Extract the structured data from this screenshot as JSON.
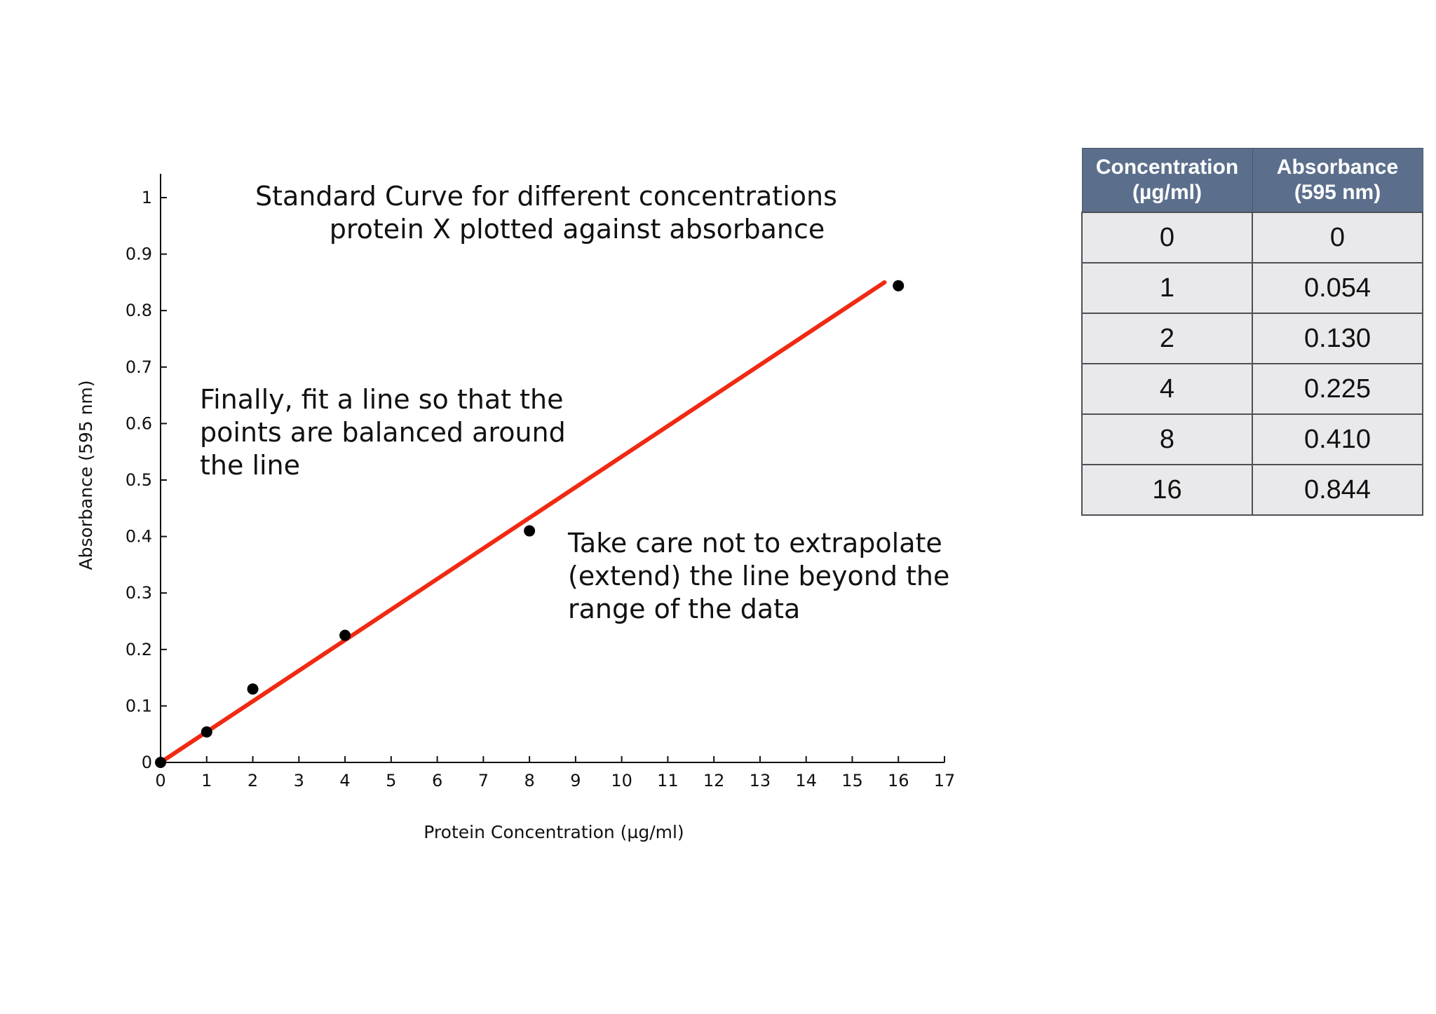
{
  "chart_data": {
    "type": "scatter",
    "title": [
      "Standard Curve for different concentrations",
      "protein X plotted against absorbance"
    ],
    "xlabel": "Protein Concentration (µg/ml)",
    "ylabel": "Absorbance (595 nm)",
    "xlim": [
      0,
      17
    ],
    "ylim": [
      0,
      1
    ],
    "x_ticks": [
      "0",
      "1",
      "2",
      "3",
      "4",
      "5",
      "6",
      "7",
      "8",
      "9",
      "10",
      "11",
      "12",
      "13",
      "14",
      "15",
      "16",
      "17"
    ],
    "y_ticks": [
      "0",
      "0.1",
      "0.2",
      "0.3",
      "0.4",
      "0.5",
      "0.6",
      "0.7",
      "0.8",
      "0.9",
      "1"
    ],
    "grid": false,
    "series": [
      {
        "x": [
          0,
          1,
          2,
          4,
          8,
          16
        ],
        "y": [
          0,
          0.054,
          0.13,
          0.225,
          0.41,
          0.844
        ]
      }
    ],
    "fit_line": {
      "x": [
        0,
        15.7
      ],
      "y": [
        0,
        0.85
      ],
      "color": "#f02a12"
    },
    "point_color": "#000000",
    "annotations": [
      [
        "Finally, fit a line so that the",
        "points are balanced around",
        "the line"
      ],
      [
        "Take care not to extrapolate",
        "(extend) the line beyond the",
        "range of the data"
      ]
    ]
  },
  "table": {
    "headers": [
      "Concentration\n(µg/ml)",
      "Absorbance\n(595 nm)"
    ],
    "rows": [
      [
        "0",
        "0"
      ],
      [
        "1",
        "0.054"
      ],
      [
        "2",
        "0.130"
      ],
      [
        "4",
        "0.225"
      ],
      [
        "8",
        "0.410"
      ],
      [
        "16",
        "0.844"
      ]
    ]
  }
}
